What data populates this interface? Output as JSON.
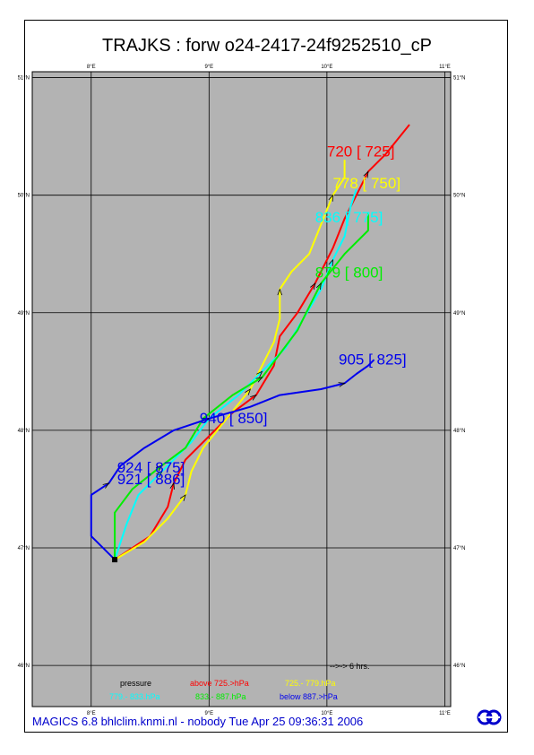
{
  "title": "TRAJKS : forw o24-2417-24f9252510_cP",
  "footer": "MAGICS 6.8 bhlclim.knmi.nl - nobody Tue Apr 25 09:36:31 2006",
  "map": {
    "lon_range": [
      7.5,
      11.05
    ],
    "lat_range": [
      45.65,
      51.05
    ],
    "lon_ticks": [
      "8°E",
      "9°E",
      "10°E",
      "11°E"
    ],
    "lat_ticks": [
      "46°N",
      "47°N",
      "48°N",
      "49°N",
      "50°N",
      "51°N"
    ],
    "background": "#b3b3b3",
    "grid": true,
    "origin": {
      "lon": 8.2,
      "lat": 46.9
    }
  },
  "legend": {
    "arrow_note": "-->-> 6 hrs.",
    "header": "pressure",
    "items": [
      {
        "label": "above  725.>hPa",
        "color": "#ff0000"
      },
      {
        "label": "725.-   779.hPa",
        "color": "#ffff00"
      },
      {
        "label": "779.-   833.hPa",
        "color": "#00ffff"
      },
      {
        "label": "833.-   887.hPa",
        "color": "#00ee00"
      },
      {
        "label": "below  887.>hPa",
        "color": "#0000ee"
      }
    ]
  },
  "trajectories": [
    {
      "label": "720 [ 725]",
      "color": "#ff0000",
      "label_pos": {
        "lon": 10.0,
        "lat": 50.33
      },
      "points": [
        [
          8.2,
          46.9
        ],
        [
          8.5,
          47.1
        ],
        [
          8.65,
          47.35
        ],
        [
          8.7,
          47.55
        ],
        [
          8.8,
          47.75
        ],
        [
          9.0,
          47.95
        ],
        [
          9.2,
          48.15
        ],
        [
          9.4,
          48.3
        ],
        [
          9.55,
          48.55
        ],
        [
          9.6,
          48.8
        ],
        [
          9.75,
          49.0
        ],
        [
          9.9,
          49.25
        ],
        [
          10.05,
          49.55
        ],
        [
          10.15,
          49.8
        ],
        [
          10.25,
          50.0
        ],
        [
          10.35,
          50.2
        ],
        [
          10.5,
          50.35
        ],
        [
          10.7,
          50.6
        ]
      ]
    },
    {
      "label": "778 [ 750]",
      "color": "#ffff00",
      "label_pos": {
        "lon": 10.05,
        "lat": 50.06
      },
      "points": [
        [
          8.2,
          46.9
        ],
        [
          8.45,
          47.05
        ],
        [
          8.65,
          47.25
        ],
        [
          8.8,
          47.45
        ],
        [
          8.85,
          47.65
        ],
        [
          8.95,
          47.85
        ],
        [
          9.15,
          48.1
        ],
        [
          9.35,
          48.35
        ],
        [
          9.45,
          48.55
        ],
        [
          9.55,
          48.75
        ],
        [
          9.6,
          48.95
        ],
        [
          9.6,
          49.2
        ],
        [
          9.7,
          49.35
        ],
        [
          9.85,
          49.5
        ],
        [
          9.95,
          49.75
        ],
        [
          10.05,
          50.0
        ],
        [
          10.15,
          50.15
        ],
        [
          10.15,
          50.3
        ]
      ]
    },
    {
      "label": "836 [ 775]",
      "color": "#00ffff",
      "label_pos": {
        "lon": 9.9,
        "lat": 49.77
      },
      "points": [
        [
          8.2,
          46.9
        ],
        [
          8.3,
          47.2
        ],
        [
          8.4,
          47.45
        ],
        [
          8.6,
          47.65
        ],
        [
          8.85,
          47.9
        ],
        [
          9.0,
          48.1
        ],
        [
          9.25,
          48.3
        ],
        [
          9.45,
          48.5
        ],
        [
          9.65,
          48.7
        ],
        [
          9.8,
          48.95
        ],
        [
          9.95,
          49.2
        ],
        [
          10.05,
          49.45
        ],
        [
          10.15,
          49.65
        ],
        [
          10.2,
          49.9
        ],
        [
          10.25,
          50.05
        ]
      ]
    },
    {
      "label": "879 [ 800]",
      "color": "#00ee00",
      "label_pos": {
        "lon": 9.9,
        "lat": 49.3
      },
      "points": [
        [
          8.2,
          46.9
        ],
        [
          8.2,
          47.3
        ],
        [
          8.35,
          47.5
        ],
        [
          8.6,
          47.7
        ],
        [
          8.8,
          47.85
        ],
        [
          8.95,
          48.1
        ],
        [
          9.2,
          48.3
        ],
        [
          9.45,
          48.45
        ],
        [
          9.6,
          48.65
        ],
        [
          9.75,
          48.85
        ],
        [
          9.85,
          49.05
        ],
        [
          9.95,
          49.25
        ],
        [
          10.15,
          49.5
        ],
        [
          10.35,
          49.7
        ],
        [
          10.35,
          49.85
        ]
      ]
    },
    {
      "label": "905 [ 825]",
      "color": "#0000ee",
      "label_pos": {
        "lon": 10.1,
        "lat": 48.56
      },
      "points": [
        [
          8.2,
          46.9
        ],
        [
          8.0,
          47.1
        ],
        [
          8.0,
          47.45
        ],
        [
          8.15,
          47.55
        ],
        [
          8.25,
          47.7
        ],
        [
          8.45,
          47.85
        ],
        [
          8.7,
          48.0
        ],
        [
          9.0,
          48.1
        ],
        [
          9.35,
          48.2
        ],
        [
          9.6,
          48.3
        ],
        [
          9.95,
          48.35
        ],
        [
          10.15,
          48.4
        ],
        [
          10.25,
          48.48
        ],
        [
          10.35,
          48.55
        ],
        [
          10.4,
          48.6
        ]
      ]
    }
  ],
  "extra_labels": [
    {
      "label": "940 [ 850]",
      "color": "#0000ee",
      "lon": 8.92,
      "lat": 48.06
    },
    {
      "label": "924 [ 875]",
      "color": "#0000ee",
      "lon": 8.22,
      "lat": 47.64
    },
    {
      "label": "921 [ 886]",
      "color": "#0000ee",
      "lon": 8.22,
      "lat": 47.54
    }
  ],
  "logo_name": "ecmwf-logo-icon"
}
